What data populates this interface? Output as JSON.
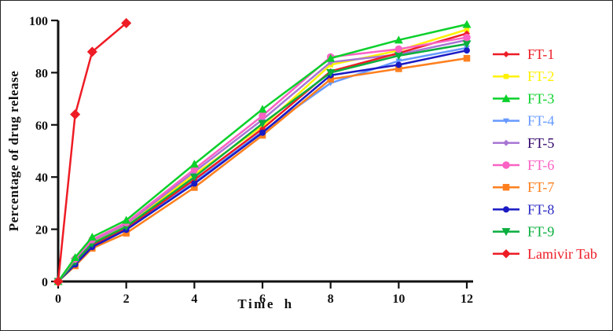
{
  "chart_data": {
    "type": "line",
    "title": "",
    "xlabel": "Time h",
    "ylabel": "Percentage of drug release",
    "xlim": [
      0,
      12.3
    ],
    "ylim": [
      0,
      100
    ],
    "x_ticks": [
      0,
      2,
      4,
      6,
      8,
      10,
      12
    ],
    "y_ticks": [
      0,
      20,
      40,
      60,
      80,
      100
    ],
    "grid": false,
    "legend_position": "right",
    "x": [
      0,
      0.5,
      1,
      2,
      4,
      6,
      8,
      10,
      12
    ],
    "series": [
      {
        "name": "FT-1",
        "color": "#EE1C25",
        "label_color": "#EE1C25",
        "marker": "diamond",
        "marker_size": 6,
        "values": [
          0,
          7.2,
          14,
          20.5,
          39,
          58.5,
          80.5,
          87.5,
          95
        ]
      },
      {
        "name": "FT-2",
        "color": "#FFF100",
        "label_color": "#FFF100",
        "marker": "square",
        "marker_size": 6.5,
        "values": [
          0,
          8,
          15,
          21.5,
          41,
          59.5,
          83,
          88.5,
          96.5
        ]
      },
      {
        "name": "FT-3",
        "color": "#0BD02B",
        "label_color": "#0BD02B",
        "marker": "triangle-up",
        "marker_size": 9,
        "values": [
          0,
          9.2,
          17,
          23.5,
          45,
          66,
          85.5,
          92.5,
          98.5
        ]
      },
      {
        "name": "FT-4",
        "color": "#6699FF",
        "label_color": "#6699FF",
        "marker": "triangle-down",
        "marker_size": 6,
        "values": [
          0,
          6.8,
          13.5,
          20,
          38,
          57.5,
          76,
          84.5,
          89.5
        ]
      },
      {
        "name": "FT-5",
        "color": "#A875D4",
        "label_color": "#33066B",
        "marker": "diamond",
        "marker_size": 6,
        "values": [
          0,
          8.3,
          15.5,
          22,
          42,
          62,
          84,
          87,
          92.5
        ]
      },
      {
        "name": "FT-6",
        "color": "#FA62C4",
        "label_color": "#FA62C4",
        "marker": "circle",
        "marker_size": 9.5,
        "values": [
          0,
          8.6,
          16,
          22.5,
          43,
          63.5,
          86,
          89,
          93.5
        ]
      },
      {
        "name": "FT-7",
        "color": "#FF7F1E",
        "label_color": "#FF7F1E",
        "marker": "square",
        "marker_size": 8.5,
        "values": [
          0,
          6,
          12.7,
          18.5,
          36,
          56,
          77.5,
          81.5,
          85.5
        ]
      },
      {
        "name": "FT-8",
        "color": "#1A1AC4",
        "label_color": "#2A2AC4",
        "marker": "circle",
        "marker_size": 8,
        "values": [
          0,
          6.5,
          13.2,
          19.8,
          37.5,
          57,
          79,
          83,
          88.5
        ]
      },
      {
        "name": "FT-9",
        "color": "#0AAE3E",
        "label_color": "#0AAE3E",
        "marker": "triangle-down",
        "marker_size": 9,
        "values": [
          0,
          7.6,
          14.5,
          21,
          40,
          60.5,
          80,
          86.5,
          91
        ]
      },
      {
        "name": "Lamivir Tab",
        "color": "#EE1C25",
        "label_color": "#EE1C25",
        "marker": "diamond",
        "marker_size": 11,
        "x": [
          0,
          0.5,
          1,
          2
        ],
        "values": [
          0,
          64,
          88,
          99
        ]
      }
    ]
  },
  "frame": {
    "background": "#ffffff",
    "border_color": "#262626",
    "axis_color": "#111111"
  }
}
